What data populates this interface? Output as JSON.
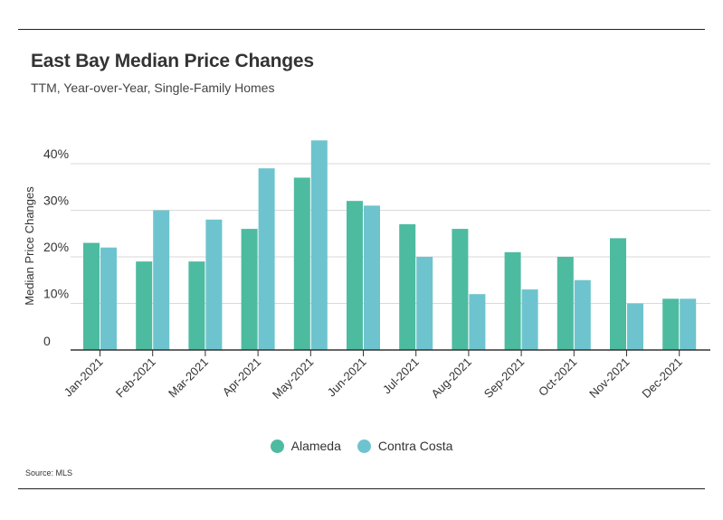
{
  "header": {
    "title": "East Bay Median Price Changes",
    "subtitle": "TTM, Year-over-Year, Single-Family Homes"
  },
  "footer": {
    "source": "Source:  MLS"
  },
  "colors": {
    "alameda": "#4dbba0",
    "contra_costa": "#6ec4ce",
    "grid": "#d9d9d9",
    "axis": "#333333"
  },
  "chart_data": {
    "type": "bar",
    "title": "East Bay Median Price Changes",
    "subtitle": "TTM, Year-over-Year, Single-Family Homes",
    "xlabel": "",
    "ylabel": "Median Price Changes",
    "ylim": [
      0,
      50
    ],
    "yticks": [
      0,
      10,
      20,
      30,
      40
    ],
    "ytick_labels": [
      "0",
      "10%",
      "20%",
      "30%",
      "40%"
    ],
    "grid": true,
    "legend_position": "bottom",
    "categories": [
      "Jan-2021",
      "Feb-2021",
      "Mar-2021",
      "Apr-2021",
      "May-2021",
      "Jun-2021",
      "Jul-2021",
      "Aug-2021",
      "Sep-2021",
      "Oct-2021",
      "Nov-2021",
      "Dec-2021"
    ],
    "series": [
      {
        "name": "Alameda",
        "values": [
          23,
          19,
          19,
          26,
          37,
          32,
          27,
          26,
          21,
          20,
          24,
          11
        ]
      },
      {
        "name": "Contra Costa",
        "values": [
          22,
          30,
          28,
          39,
          45,
          31,
          20,
          12,
          13,
          15,
          10,
          11
        ]
      }
    ]
  }
}
